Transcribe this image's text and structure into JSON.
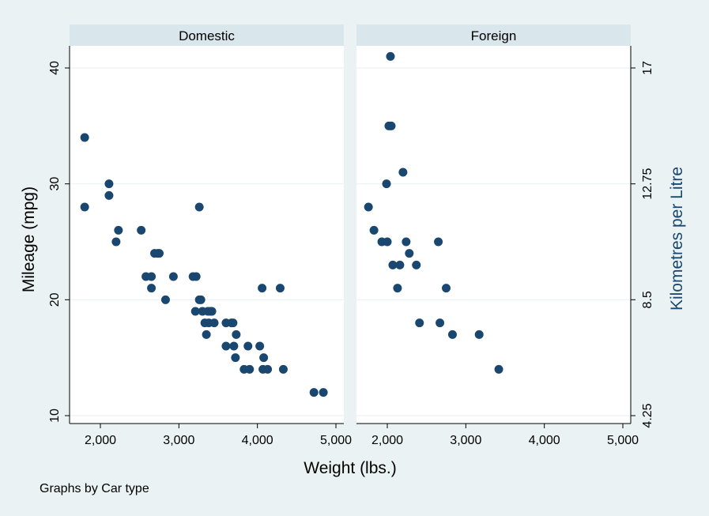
{
  "chart_data": {
    "type": "scatter",
    "xlabel": "Weight (lbs.)",
    "ylabel": "Mileage (mpg)",
    "y2label": "Kilometres per Litre",
    "note": "Graphs by Car type",
    "xlim": [
      1700,
      5000
    ],
    "ylim": [
      9.5,
      42
    ],
    "xticks": [
      2000,
      3000,
      4000,
      5000
    ],
    "xtick_labels": [
      "2,000",
      "3,000",
      "4,000",
      "5,000"
    ],
    "yticks": [
      10,
      20,
      30,
      40
    ],
    "yticks2": [
      10,
      20,
      30,
      40
    ],
    "yticks2_labels": [
      "4.25",
      "8.5",
      "12.75",
      "17"
    ],
    "grid": true,
    "colors": {
      "marker": "#1a476f",
      "panel_header": "#d9e6eb",
      "background": "#eaf2f3",
      "plot_bg": "#ffffff",
      "grid": "#eaf2f3"
    },
    "panels": [
      {
        "title": "Domestic",
        "points": [
          [
            1800,
            34
          ],
          [
            1800,
            28
          ],
          [
            2110,
            30
          ],
          [
            2110,
            29
          ],
          [
            2200,
            25
          ],
          [
            2230,
            26
          ],
          [
            2520,
            26
          ],
          [
            2580,
            22
          ],
          [
            2650,
            22
          ],
          [
            2650,
            21
          ],
          [
            2690,
            24
          ],
          [
            2730,
            24
          ],
          [
            2750,
            24
          ],
          [
            2830,
            20
          ],
          [
            2930,
            22
          ],
          [
            3180,
            22
          ],
          [
            3220,
            22
          ],
          [
            3210,
            19
          ],
          [
            3260,
            28
          ],
          [
            3260,
            20
          ],
          [
            3280,
            20
          ],
          [
            3300,
            19
          ],
          [
            3330,
            18
          ],
          [
            3350,
            17
          ],
          [
            3370,
            19
          ],
          [
            3380,
            18
          ],
          [
            3400,
            19
          ],
          [
            3420,
            19
          ],
          [
            3450,
            18
          ],
          [
            3600,
            18
          ],
          [
            3600,
            16
          ],
          [
            3670,
            18
          ],
          [
            3690,
            18
          ],
          [
            3700,
            16
          ],
          [
            3720,
            15
          ],
          [
            3730,
            17
          ],
          [
            3830,
            14
          ],
          [
            3880,
            16
          ],
          [
            3900,
            14
          ],
          [
            4030,
            16
          ],
          [
            4060,
            21
          ],
          [
            4070,
            14
          ],
          [
            4080,
            15
          ],
          [
            4130,
            14
          ],
          [
            4290,
            21
          ],
          [
            4330,
            14
          ],
          [
            4720,
            12
          ],
          [
            4840,
            12
          ]
        ]
      },
      {
        "title": "Foreign",
        "points": [
          [
            1760,
            28
          ],
          [
            1830,
            26
          ],
          [
            1930,
            25
          ],
          [
            1990,
            30
          ],
          [
            2000,
            25
          ],
          [
            2020,
            35
          ],
          [
            2040,
            41
          ],
          [
            2050,
            35
          ],
          [
            2070,
            23
          ],
          [
            2130,
            21
          ],
          [
            2160,
            23
          ],
          [
            2200,
            31
          ],
          [
            2240,
            25
          ],
          [
            2280,
            24
          ],
          [
            2370,
            23
          ],
          [
            2410,
            18
          ],
          [
            2650,
            25
          ],
          [
            2670,
            18
          ],
          [
            2750,
            21
          ],
          [
            2830,
            17
          ],
          [
            3170,
            17
          ],
          [
            3420,
            14
          ]
        ]
      }
    ]
  }
}
